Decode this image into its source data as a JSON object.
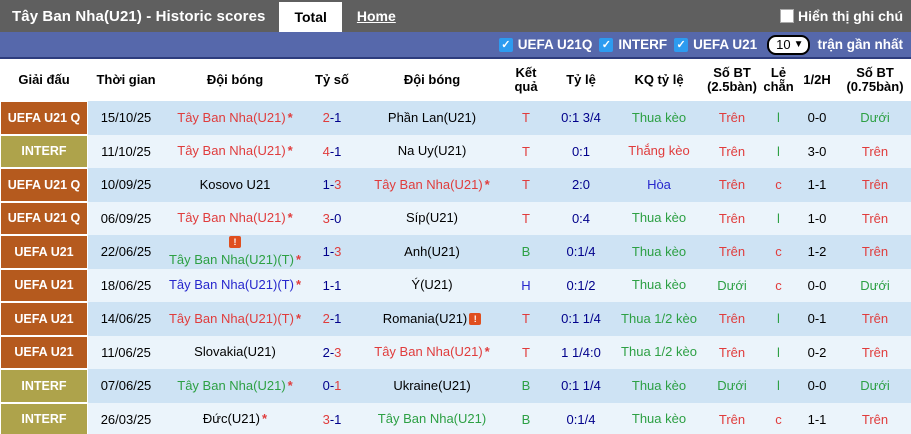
{
  "palette": {
    "red": "#e03c3c",
    "green": "#2da044",
    "blue": "#2727cd",
    "navy": "#00008b",
    "black": "#000000"
  },
  "title_bar": {
    "title": "Tây Ban Nha(U21) - Historic scores",
    "tabs": [
      {
        "label": "Total",
        "active": true
      },
      {
        "label": "Home",
        "active": false
      }
    ],
    "note_label": "Hiển thị ghi chú",
    "note_checked": false
  },
  "filter_bar": {
    "filters": [
      {
        "label": "UEFA U21Q",
        "checked": true
      },
      {
        "label": "INTERF",
        "checked": true
      },
      {
        "label": "UEFA U21",
        "checked": true
      }
    ],
    "select_value": "10",
    "suffix": "trận gần nhất"
  },
  "table": {
    "headers": [
      "Giải đấu",
      "Thời gian",
      "Đội bóng",
      "Tỷ số",
      "Đội bóng",
      "Kết quả",
      "Tỷ lệ",
      "KQ tỷ lệ",
      "Số BT (2.5bàn)",
      "Lẻ chẵn",
      "1/2H",
      "Số BT (0.75bàn)"
    ],
    "rows": [
      {
        "league": "UEFA U21 Q",
        "league_type": "uefa",
        "date": "15/10/25",
        "home": {
          "name": "Tây Ban Nha(U21)",
          "color": "red",
          "star": true,
          "icon": null
        },
        "score": {
          "home": "2",
          "away": "1",
          "home_color": "red",
          "away_color": "navy"
        },
        "away": {
          "name": "Phần Lan(U21)",
          "color": "black",
          "star": false,
          "icon": null
        },
        "result": {
          "text": "T",
          "color": "red"
        },
        "odds": "0:1 3/4",
        "odds_result": {
          "text": "Thua kèo",
          "color": "green"
        },
        "ou25": {
          "text": "Trên",
          "color": "red"
        },
        "odd_even": {
          "text": "l",
          "color": "green"
        },
        "half": "0-0",
        "ou075": {
          "text": "Dưới",
          "color": "green"
        }
      },
      {
        "league": "INTERF",
        "league_type": "interf",
        "date": "11/10/25",
        "home": {
          "name": "Tây Ban Nha(U21)",
          "color": "red",
          "star": true,
          "icon": null
        },
        "score": {
          "home": "4",
          "away": "1",
          "home_color": "red",
          "away_color": "navy"
        },
        "away": {
          "name": "Na Uy(U21)",
          "color": "black",
          "star": false,
          "icon": null
        },
        "result": {
          "text": "T",
          "color": "red"
        },
        "odds": "0:1",
        "odds_result": {
          "text": "Thắng kèo",
          "color": "red"
        },
        "ou25": {
          "text": "Trên",
          "color": "red"
        },
        "odd_even": {
          "text": "l",
          "color": "green"
        },
        "half": "3-0",
        "ou075": {
          "text": "Trên",
          "color": "red"
        }
      },
      {
        "league": "UEFA U21 Q",
        "league_type": "uefa",
        "date": "10/09/25",
        "home": {
          "name": "Kosovo U21",
          "color": "black",
          "star": false,
          "icon": null
        },
        "score": {
          "home": "1",
          "away": "3",
          "home_color": "navy",
          "away_color": "red"
        },
        "away": {
          "name": "Tây Ban Nha(U21)",
          "color": "red",
          "star": true,
          "icon": null
        },
        "result": {
          "text": "T",
          "color": "red"
        },
        "odds": "2:0",
        "odds_result": {
          "text": "Hòa",
          "color": "blue"
        },
        "ou25": {
          "text": "Trên",
          "color": "red"
        },
        "odd_even": {
          "text": "c",
          "color": "red"
        },
        "half": "1-1",
        "ou075": {
          "text": "Trên",
          "color": "red"
        }
      },
      {
        "league": "UEFA U21 Q",
        "league_type": "uefa",
        "date": "06/09/25",
        "home": {
          "name": "Tây Ban Nha(U21)",
          "color": "red",
          "star": true,
          "icon": null
        },
        "score": {
          "home": "3",
          "away": "0",
          "home_color": "red",
          "away_color": "navy"
        },
        "away": {
          "name": "Síp(U21)",
          "color": "black",
          "star": false,
          "icon": null
        },
        "result": {
          "text": "T",
          "color": "red"
        },
        "odds": "0:4",
        "odds_result": {
          "text": "Thua kèo",
          "color": "green"
        },
        "ou25": {
          "text": "Trên",
          "color": "red"
        },
        "odd_even": {
          "text": "l",
          "color": "green"
        },
        "half": "1-0",
        "ou075": {
          "text": "Trên",
          "color": "red"
        }
      },
      {
        "league": "UEFA U21",
        "league_type": "uefa",
        "date": "22/06/25",
        "home": {
          "name": "Tây Ban Nha(U21)(T)",
          "color": "green",
          "star": true,
          "icon": "before"
        },
        "score": {
          "home": "1",
          "away": "3",
          "home_color": "navy",
          "away_color": "red"
        },
        "away": {
          "name": "Anh(U21)",
          "color": "black",
          "star": false,
          "icon": null
        },
        "result": {
          "text": "B",
          "color": "green"
        },
        "odds": "0:1/4",
        "odds_result": {
          "text": "Thua kèo",
          "color": "green"
        },
        "ou25": {
          "text": "Trên",
          "color": "red"
        },
        "odd_even": {
          "text": "c",
          "color": "red"
        },
        "half": "1-2",
        "ou075": {
          "text": "Trên",
          "color": "red"
        }
      },
      {
        "league": "UEFA U21",
        "league_type": "uefa",
        "date": "18/06/25",
        "home": {
          "name": "Tây Ban Nha(U21)(T)",
          "color": "blue",
          "star": true,
          "icon": null
        },
        "score": {
          "home": "1",
          "away": "1",
          "home_color": "navy",
          "away_color": "navy"
        },
        "away": {
          "name": "Ý(U21)",
          "color": "black",
          "star": false,
          "icon": null
        },
        "result": {
          "text": "H",
          "color": "blue"
        },
        "odds": "0:1/2",
        "odds_result": {
          "text": "Thua kèo",
          "color": "green"
        },
        "ou25": {
          "text": "Dưới",
          "color": "green"
        },
        "odd_even": {
          "text": "c",
          "color": "red"
        },
        "half": "0-0",
        "ou075": {
          "text": "Dưới",
          "color": "green"
        }
      },
      {
        "league": "UEFA U21",
        "league_type": "uefa",
        "date": "14/06/25",
        "home": {
          "name": "Tây Ban Nha(U21)(T)",
          "color": "red",
          "star": true,
          "icon": null
        },
        "score": {
          "home": "2",
          "away": "1",
          "home_color": "red",
          "away_color": "navy"
        },
        "away": {
          "name": "Romania(U21)",
          "color": "black",
          "star": false,
          "icon": "after"
        },
        "result": {
          "text": "T",
          "color": "red"
        },
        "odds": "0:1 1/4",
        "odds_result": {
          "text": "Thua 1/2 kèo",
          "color": "green"
        },
        "ou25": {
          "text": "Trên",
          "color": "red"
        },
        "odd_even": {
          "text": "l",
          "color": "green"
        },
        "half": "0-1",
        "ou075": {
          "text": "Trên",
          "color": "red"
        }
      },
      {
        "league": "UEFA U21",
        "league_type": "uefa",
        "date": "11/06/25",
        "home": {
          "name": "Slovakia(U21)",
          "color": "black",
          "star": false,
          "icon": null
        },
        "score": {
          "home": "2",
          "away": "3",
          "home_color": "navy",
          "away_color": "red"
        },
        "away": {
          "name": "Tây Ban Nha(U21)",
          "color": "red",
          "star": true,
          "icon": null
        },
        "result": {
          "text": "T",
          "color": "red"
        },
        "odds": "1 1/4:0",
        "odds_result": {
          "text": "Thua 1/2 kèo",
          "color": "green"
        },
        "ou25": {
          "text": "Trên",
          "color": "red"
        },
        "odd_even": {
          "text": "l",
          "color": "green"
        },
        "half": "0-2",
        "ou075": {
          "text": "Trên",
          "color": "red"
        }
      },
      {
        "league": "INTERF",
        "league_type": "interf",
        "date": "07/06/25",
        "home": {
          "name": "Tây Ban Nha(U21)",
          "color": "green",
          "star": true,
          "icon": null
        },
        "score": {
          "home": "0",
          "away": "1",
          "home_color": "navy",
          "away_color": "red"
        },
        "away": {
          "name": "Ukraine(U21)",
          "color": "black",
          "star": false,
          "icon": null
        },
        "result": {
          "text": "B",
          "color": "green"
        },
        "odds": "0:1 1/4",
        "odds_result": {
          "text": "Thua kèo",
          "color": "green"
        },
        "ou25": {
          "text": "Dưới",
          "color": "green"
        },
        "odd_even": {
          "text": "l",
          "color": "green"
        },
        "half": "0-0",
        "ou075": {
          "text": "Dưới",
          "color": "green"
        }
      },
      {
        "league": "INTERF",
        "league_type": "interf",
        "date": "26/03/25",
        "home": {
          "name": "Đức(U21)",
          "color": "black",
          "star": true,
          "icon": null
        },
        "score": {
          "home": "3",
          "away": "1",
          "home_color": "red",
          "away_color": "navy"
        },
        "away": {
          "name": "Tây Ban Nha(U21)",
          "color": "green",
          "star": false,
          "icon": null
        },
        "result": {
          "text": "B",
          "color": "green"
        },
        "odds": "0:1/4",
        "odds_result": {
          "text": "Thua kèo",
          "color": "green"
        },
        "ou25": {
          "text": "Trên",
          "color": "red"
        },
        "odd_even": {
          "text": "c",
          "color": "red"
        },
        "half": "1-1",
        "ou075": {
          "text": "Trên",
          "color": "red"
        }
      }
    ]
  }
}
